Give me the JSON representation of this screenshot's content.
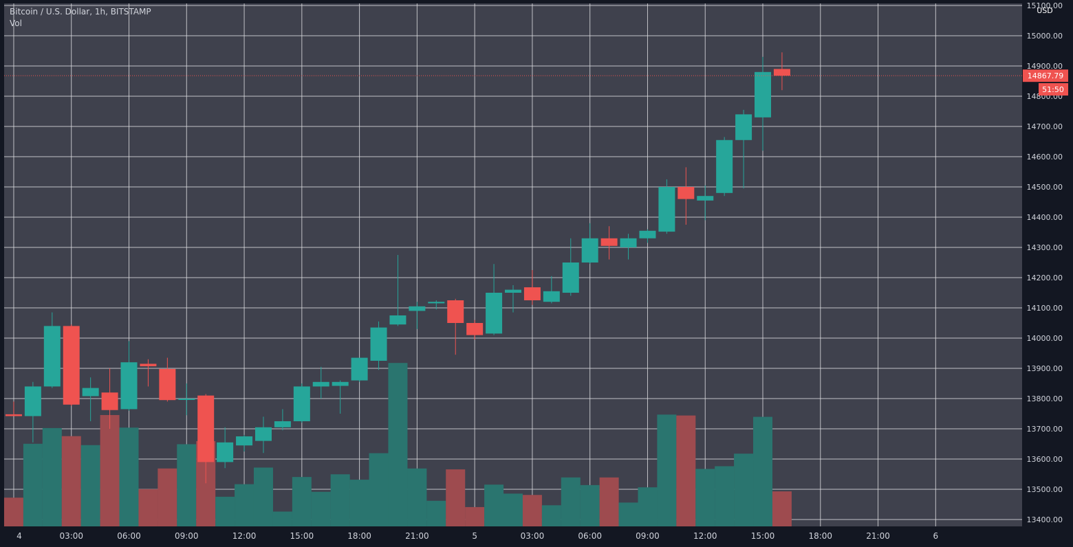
{
  "header": {
    "symbol_line": "Bitcoin / U.S. Dollar, 1h, BITSTAMP",
    "volume_label": "Vol"
  },
  "price_scale": {
    "currency": "USD",
    "current_price": "14867.79",
    "countdown": "51:50"
  },
  "colors": {
    "background": "#131722",
    "pane": "#3f414d",
    "grid": "#d8d8dc",
    "up": "#26a69a",
    "down": "#ef5350",
    "vol_up": "#2a756f",
    "vol_down": "#9e4b4f",
    "axis_text": "#d1d4dc"
  },
  "chart_data": {
    "type": "candlestick",
    "title": "Bitcoin / U.S. Dollar, 1h, BITSTAMP",
    "series_name": "Vol",
    "ylim": [
      13380,
      15100
    ],
    "y_ticks": [
      13400,
      13500,
      13600,
      13700,
      13800,
      13900,
      14000,
      14100,
      14200,
      14300,
      14400,
      14500,
      14600,
      14700,
      14800,
      14900,
      15000,
      15100
    ],
    "y_tick_labels": [
      "13400.00",
      "13500.00",
      "13600.00",
      "13700.00",
      "13800.00",
      "13900.00",
      "14000.00",
      "14100.00",
      "14200.00",
      "14300.00",
      "14400.00",
      "14500.00",
      "14600.00",
      "14700.00",
      "14800.00",
      "14900.00",
      "15000.00",
      "15100.00"
    ],
    "x_domain_hours": [
      -0.5,
      52.5
    ],
    "x_ticks": [
      {
        "hour": 0,
        "label": "4"
      },
      {
        "hour": 3,
        "label": "03:00"
      },
      {
        "hour": 6,
        "label": "06:00"
      },
      {
        "hour": 9,
        "label": "09:00"
      },
      {
        "hour": 12,
        "label": "12:00"
      },
      {
        "hour": 15,
        "label": "15:00"
      },
      {
        "hour": 18,
        "label": "18:00"
      },
      {
        "hour": 21,
        "label": "21:00"
      },
      {
        "hour": 24,
        "label": "5"
      },
      {
        "hour": 27,
        "label": "03:00"
      },
      {
        "hour": 30,
        "label": "06:00"
      },
      {
        "hour": 33,
        "label": "09:00"
      },
      {
        "hour": 36,
        "label": "12:00"
      },
      {
        "hour": 39,
        "label": "15:00"
      },
      {
        "hour": 42,
        "label": "18:00"
      },
      {
        "hour": 45,
        "label": "21:00"
      },
      {
        "hour": 48,
        "label": "6"
      }
    ],
    "last_price": 14867.79,
    "volume_scale_max": 1500,
    "candles": [
      {
        "o": 13748,
        "h": 13790,
        "l": 13742,
        "c": 13742,
        "v": 320
      },
      {
        "o": 13742,
        "h": 13855,
        "l": 13655,
        "c": 13840,
        "v": 920
      },
      {
        "o": 13840,
        "h": 14085,
        "l": 13835,
        "c": 14040,
        "v": 1095
      },
      {
        "o": 14040,
        "h": 14045,
        "l": 13775,
        "c": 13780,
        "v": 1005
      },
      {
        "o": 13808,
        "h": 13870,
        "l": 13725,
        "c": 13835,
        "v": 905
      },
      {
        "o": 13820,
        "h": 13900,
        "l": 13700,
        "c": 13762,
        "v": 1240
      },
      {
        "o": 13765,
        "h": 13990,
        "l": 13760,
        "c": 13920,
        "v": 1100
      },
      {
        "o": 13915,
        "h": 13930,
        "l": 13840,
        "c": 13907,
        "v": 415
      },
      {
        "o": 13898,
        "h": 13935,
        "l": 13790,
        "c": 13795,
        "v": 645
      },
      {
        "o": 13800,
        "h": 13850,
        "l": 13745,
        "c": 13800,
        "v": 915
      },
      {
        "o": 13810,
        "h": 13815,
        "l": 13520,
        "c": 13590,
        "v": 950
      },
      {
        "o": 13590,
        "h": 13705,
        "l": 13570,
        "c": 13655,
        "v": 330
      },
      {
        "o": 13645,
        "h": 13680,
        "l": 13625,
        "c": 13675,
        "v": 470
      },
      {
        "o": 13660,
        "h": 13740,
        "l": 13620,
        "c": 13705,
        "v": 655
      },
      {
        "o": 13705,
        "h": 13765,
        "l": 13695,
        "c": 13725,
        "v": 165
      },
      {
        "o": 13725,
        "h": 13850,
        "l": 13720,
        "c": 13840,
        "v": 550
      },
      {
        "o": 13840,
        "h": 13905,
        "l": 13800,
        "c": 13855,
        "v": 385
      },
      {
        "o": 13842,
        "h": 13860,
        "l": 13750,
        "c": 13855,
        "v": 580
      },
      {
        "o": 13860,
        "h": 13935,
        "l": 13855,
        "c": 13935,
        "v": 520
      },
      {
        "o": 13925,
        "h": 14055,
        "l": 13895,
        "c": 14035,
        "v": 815
      },
      {
        "o": 14045,
        "h": 14275,
        "l": 14040,
        "c": 14075,
        "v": 1820
      },
      {
        "o": 14090,
        "h": 14120,
        "l": 14030,
        "c": 14105,
        "v": 645
      },
      {
        "o": 14115,
        "h": 14125,
        "l": 14095,
        "c": 14120,
        "v": 285
      },
      {
        "o": 14125,
        "h": 14130,
        "l": 13945,
        "c": 14050,
        "v": 635
      },
      {
        "o": 14050,
        "h": 14060,
        "l": 13995,
        "c": 14010,
        "v": 215
      },
      {
        "o": 14015,
        "h": 14245,
        "l": 14010,
        "c": 14150,
        "v": 465
      },
      {
        "o": 14150,
        "h": 14175,
        "l": 14085,
        "c": 14160,
        "v": 365
      },
      {
        "o": 14168,
        "h": 14225,
        "l": 14110,
        "c": 14125,
        "v": 350
      },
      {
        "o": 14120,
        "h": 14205,
        "l": 14115,
        "c": 14155,
        "v": 235
      },
      {
        "o": 14150,
        "h": 14330,
        "l": 14140,
        "c": 14250,
        "v": 545
      },
      {
        "o": 14250,
        "h": 14380,
        "l": 14245,
        "c": 14330,
        "v": 460
      },
      {
        "o": 14330,
        "h": 14370,
        "l": 14260,
        "c": 14305,
        "v": 545
      },
      {
        "o": 14300,
        "h": 14345,
        "l": 14260,
        "c": 14330,
        "v": 265
      },
      {
        "o": 14330,
        "h": 14360,
        "l": 14315,
        "c": 14355,
        "v": 435
      },
      {
        "o": 14352,
        "h": 14525,
        "l": 14345,
        "c": 14500,
        "v": 1245
      },
      {
        "o": 14500,
        "h": 14565,
        "l": 14375,
        "c": 14460,
        "v": 1235
      },
      {
        "o": 14455,
        "h": 14505,
        "l": 14390,
        "c": 14470,
        "v": 640
      },
      {
        "o": 14480,
        "h": 14665,
        "l": 14470,
        "c": 14655,
        "v": 670
      },
      {
        "o": 14655,
        "h": 14755,
        "l": 14495,
        "c": 14740,
        "v": 810
      },
      {
        "o": 14730,
        "h": 14930,
        "l": 14620,
        "c": 14880,
        "v": 1220
      },
      {
        "o": 14890,
        "h": 14945,
        "l": 14820,
        "c": 14867.79,
        "v": 390
      }
    ]
  }
}
